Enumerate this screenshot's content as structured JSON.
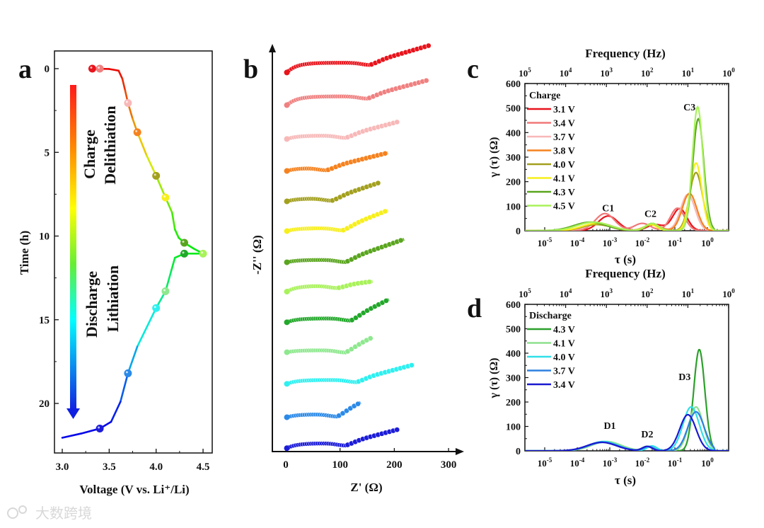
{
  "watermark": "大数跨境",
  "chart_data": [
    {
      "panel": "a",
      "type": "line",
      "xlabel": "Voltage (V vs. Li⁺/Li)",
      "ylabel": "Time (h)",
      "xlim": [
        2.95,
        4.6
      ],
      "ylim": [
        22.8,
        -1
      ],
      "xticks": [
        "3.0",
        "3.5",
        "4.0",
        "4.5"
      ],
      "xtick_values": [
        3.0,
        3.5,
        4.0,
        4.5
      ],
      "yticks": [
        "0",
        "5",
        "10",
        "15",
        "20"
      ],
      "ytick_values": [
        0,
        5,
        10,
        15,
        20
      ],
      "annotations": {
        "charge": "Charge",
        "delithiation": "Delithiation",
        "discharge": "Discharge",
        "lithiation": "Lithiation"
      },
      "curve": [
        [
          3.32,
          0
        ],
        [
          3.5,
          0.02
        ],
        [
          3.6,
          0.12
        ],
        [
          3.64,
          0.6
        ],
        [
          3.67,
          1.3
        ],
        [
          3.7,
          2.05
        ],
        [
          3.75,
          3.0
        ],
        [
          3.8,
          3.8
        ],
        [
          3.9,
          5.2
        ],
        [
          4.0,
          6.4
        ],
        [
          4.1,
          7.7
        ],
        [
          4.17,
          8.6
        ],
        [
          4.2,
          9.6
        ],
        [
          4.24,
          10.1
        ],
        [
          4.3,
          10.4
        ],
        [
          4.4,
          10.75
        ],
        [
          4.5,
          11.05
        ],
        [
          4.3,
          11.05
        ],
        [
          4.2,
          11.3
        ],
        [
          4.16,
          12.1
        ],
        [
          4.1,
          13.3
        ],
        [
          4.0,
          14.3
        ],
        [
          3.8,
          16.6
        ],
        [
          3.7,
          18.2
        ],
        [
          3.62,
          19.9
        ],
        [
          3.52,
          21.1
        ],
        [
          3.4,
          21.5
        ],
        [
          3.2,
          21.8
        ],
        [
          3.0,
          22.05
        ]
      ],
      "markers": [
        {
          "v": 3.32,
          "t": 0,
          "color": "#e8141c"
        },
        {
          "v": 3.4,
          "t": 0,
          "color": "#f08080"
        },
        {
          "v": 3.7,
          "t": 2.05,
          "color": "#f8b8b8"
        },
        {
          "v": 3.8,
          "t": 3.8,
          "color": "#f5821f"
        },
        {
          "v": 4.0,
          "t": 6.4,
          "color": "#a3a01e"
        },
        {
          "v": 4.1,
          "t": 7.7,
          "color": "#f7ef1c"
        },
        {
          "v": 4.3,
          "t": 10.4,
          "color": "#5aa51f"
        },
        {
          "v": 4.5,
          "t": 11.05,
          "color": "#a8f25a"
        },
        {
          "v": 4.3,
          "t": 11.05,
          "color": "#22a82a"
        },
        {
          "v": 4.1,
          "t": 13.3,
          "color": "#8ee88e"
        },
        {
          "v": 4.0,
          "t": 14.3,
          "color": "#2ef0f0"
        },
        {
          "v": 3.7,
          "t": 18.2,
          "color": "#2b8ae8"
        },
        {
          "v": 3.4,
          "t": 21.5,
          "color": "#1c1cd8"
        }
      ]
    },
    {
      "panel": "b",
      "type": "scatter",
      "xlabel": "Z' (Ω)",
      "ylabel": "-Z'' (Ω)",
      "xlim": [
        -25,
        320
      ],
      "xticks": [
        "0",
        "100",
        "200",
        "300"
      ],
      "xtick_values": [
        0,
        100,
        200,
        300
      ],
      "series": [
        {
          "color": "#e8141c",
          "z_end": 265,
          "dip_z": 155,
          "arc": 20,
          "tail": 32
        },
        {
          "color": "#f08080",
          "z_end": 262,
          "dip_z": 150,
          "arc": 18,
          "tail": 30
        },
        {
          "color": "#f8b8b8",
          "z_end": 205,
          "dip_z": 110,
          "arc": 7,
          "tail": 25
        },
        {
          "color": "#f5821f",
          "z_end": 188,
          "dip_z": 75,
          "arc": 6,
          "tail": 28
        },
        {
          "color": "#a3a01e",
          "z_end": 175,
          "dip_z": 85,
          "arc": 6,
          "tail": 30
        },
        {
          "color": "#f7ef1c",
          "z_end": 188,
          "dip_z": 105,
          "arc": 6,
          "tail": 33
        },
        {
          "color": "#5aa51f",
          "z_end": 218,
          "dip_z": 110,
          "arc": 5,
          "tail": 38
        },
        {
          "color": "#a8f25a",
          "z_end": 160,
          "dip_z": 95,
          "arc": 12,
          "tail": 8
        },
        {
          "color": "#22a82a",
          "z_end": 190,
          "dip_z": 120,
          "arc": 8,
          "tail": 35
        },
        {
          "color": "#8ee88e",
          "z_end": 160,
          "dip_z": 110,
          "arc": 4,
          "tail": 24
        },
        {
          "color": "#2ef0f0",
          "z_end": 235,
          "dip_z": 130,
          "arc": 8,
          "tail": 28
        },
        {
          "color": "#2b8ae8",
          "z_end": 138,
          "dip_z": 95,
          "arc": 6,
          "tail": 22
        },
        {
          "color": "#1c1cd8",
          "z_end": 205,
          "dip_z": 110,
          "arc": 10,
          "tail": 25
        }
      ]
    },
    {
      "panel": "c",
      "type": "line",
      "title_top": "Frequency (Hz)",
      "xlabel": "τ (s)",
      "ylabel": "γ (τ) (Ω)",
      "xscale": "log",
      "xlim_log10": [
        -5.6,
        0.65
      ],
      "ylim": [
        0,
        600
      ],
      "yticks": [
        "0",
        "100",
        "200",
        "300",
        "400",
        "500",
        "600"
      ],
      "xticks_exp": [
        "-5",
        "-4",
        "-3",
        "-2",
        "-1",
        "0"
      ],
      "top_ticks_exp": [
        "5",
        "4",
        "3",
        "2",
        "1",
        "0"
      ],
      "tick_base": "10",
      "legend_title": "Charge",
      "legend_position": "top-left",
      "peak_labels": [
        {
          "text": "C1",
          "tau_log": -3.05,
          "y": 80
        },
        {
          "text": "C2",
          "tau_log": -1.75,
          "y": 56
        },
        {
          "text": "C3",
          "tau_log": -0.55,
          "y": 490
        }
      ],
      "series": [
        {
          "name": "3.1 V",
          "color": "#e8141c",
          "peaks": [
            [
              60,
              -3.05,
              0.3
            ],
            [
              25,
              -1.6,
              0.25
            ],
            [
              90,
              -0.85,
              0.22
            ]
          ]
        },
        {
          "name": "3.4 V",
          "color": "#f07878",
          "peaks": [
            [
              70,
              -3.15,
              0.3
            ],
            [
              30,
              -2.0,
              0.25
            ],
            [
              92,
              -0.92,
              0.22
            ]
          ]
        },
        {
          "name": "3.7 V",
          "color": "#f8b8b8",
          "peaks": [
            [
              30,
              -3.3,
              0.4
            ],
            [
              25,
              -1.7,
              0.25
            ],
            [
              148,
              -0.6,
              0.22
            ]
          ]
        },
        {
          "name": "3.8 V",
          "color": "#f5821f",
          "peaks": [
            [
              28,
              -3.4,
              0.4
            ],
            [
              25,
              -1.7,
              0.25
            ],
            [
              152,
              -0.55,
              0.22
            ]
          ]
        },
        {
          "name": "4.0 V",
          "color": "#a3a01e",
          "peaks": [
            [
              25,
              -3.4,
              0.45
            ],
            [
              25,
              -1.7,
              0.2
            ],
            [
              237,
              -0.35,
              0.2
            ]
          ]
        },
        {
          "name": "4.1 V",
          "color": "#f7ef1c",
          "peaks": [
            [
              30,
              -3.4,
              0.45
            ],
            [
              25,
              -1.75,
              0.2
            ],
            [
              276,
              -0.35,
              0.18
            ]
          ]
        },
        {
          "name": "4.3 V",
          "color": "#5aa51f",
          "peaks": [
            [
              35,
              -3.6,
              0.5
            ],
            [
              30,
              -1.7,
              0.2
            ],
            [
              456,
              -0.28,
              0.17
            ]
          ]
        },
        {
          "name": "4.5 V",
          "color": "#a8f25a",
          "peaks": [
            [
              35,
              -3.5,
              0.5
            ],
            [
              30,
              -1.7,
              0.2
            ],
            [
              505,
              -0.3,
              0.16
            ]
          ]
        }
      ]
    },
    {
      "panel": "d",
      "type": "line",
      "title_top": "Frequency (Hz)",
      "xlabel": "τ (s)",
      "ylabel": "γ (τ) (Ω)",
      "xscale": "log",
      "xlim_log10": [
        -5.6,
        0.65
      ],
      "ylim": [
        0,
        600
      ],
      "yticks": [
        "0",
        "100",
        "200",
        "300",
        "400",
        "500",
        "600"
      ],
      "xticks_exp": [
        "-5",
        "-4",
        "-3",
        "-2",
        "-1",
        "0"
      ],
      "top_ticks_exp": [
        "5",
        "4",
        "3",
        "2",
        "1",
        "0"
      ],
      "tick_base": "10",
      "legend_title": "Discharge",
      "legend_position": "top-left",
      "peak_labels": [
        {
          "text": "D1",
          "tau_log": -3.0,
          "y": 90
        },
        {
          "text": "D2",
          "tau_log": -1.85,
          "y": 55
        },
        {
          "text": "D3",
          "tau_log": -0.7,
          "y": 290
        }
      ],
      "series": [
        {
          "name": "4.3 V",
          "color": "#2ca02c",
          "peaks": [
            [
              35,
              -3.2,
              0.45
            ],
            [
              18,
              -1.85,
              0.15
            ],
            [
              415,
              -0.25,
              0.17
            ]
          ]
        },
        {
          "name": "4.1 V",
          "color": "#8ee08e",
          "peaks": [
            [
              38,
              -3.1,
              0.45
            ],
            [
              18,
              -1.75,
              0.15
            ],
            [
              180,
              -0.35,
              0.22
            ]
          ]
        },
        {
          "name": "4.0 V",
          "color": "#30e0e8",
          "peaks": [
            [
              38,
              -3.2,
              0.45
            ],
            [
              20,
              -1.7,
              0.15
            ],
            [
              180,
              -0.5,
              0.25
            ]
          ]
        },
        {
          "name": "3.7 V",
          "color": "#2f80e0",
          "peaks": [
            [
              35,
              -3.2,
              0.45
            ],
            [
              18,
              -1.8,
              0.15
            ],
            [
              160,
              -0.35,
              0.25
            ]
          ]
        },
        {
          "name": "3.4 V",
          "color": "#1a1ad0",
          "peaks": [
            [
              35,
              -3.25,
              0.45
            ],
            [
              18,
              -1.85,
              0.15
            ],
            [
              148,
              -0.6,
              0.25
            ]
          ]
        }
      ]
    }
  ],
  "panel_letters": [
    "a",
    "b",
    "c",
    "d"
  ]
}
